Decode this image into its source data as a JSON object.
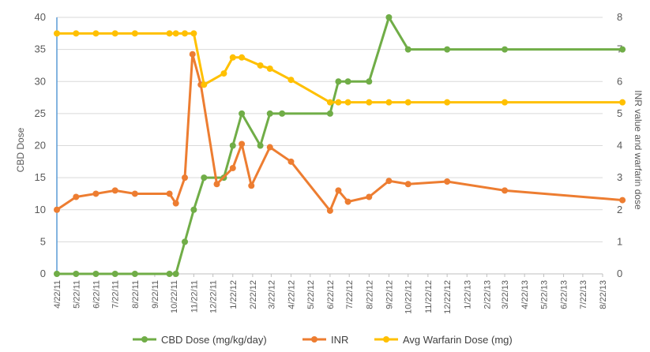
{
  "chart_data": {
    "type": "line",
    "xlabel": "",
    "ylabel": "CBD Dose",
    "y2label": "INR value and warfarin dose",
    "ylim": [
      0,
      40
    ],
    "y2lim": [
      0,
      8
    ],
    "yticks": [
      0,
      5,
      10,
      15,
      20,
      25,
      30,
      35,
      40
    ],
    "y2ticks": [
      0,
      1,
      2,
      3,
      4,
      5,
      6,
      7,
      8
    ],
    "x_ticks": [
      "4/22/11",
      "5/22/11",
      "6/22/11",
      "7/22/11",
      "8/22/11",
      "9/22/11",
      "10/22/11",
      "11/22/11",
      "12/22/11",
      "1/22/12",
      "2/22/12",
      "3/22/12",
      "4/22/12",
      "5/22/12",
      "6/22/12",
      "7/22/12",
      "8/22/12",
      "9/22/12",
      "10/22/12",
      "11/22/12",
      "12/22/12",
      "1/22/13",
      "2/22/13",
      "3/22/13",
      "4/22/13",
      "5/22/13",
      "6/22/13",
      "7/22/13",
      "8/22/13"
    ],
    "grid": "horizontal",
    "legend_position": "bottom",
    "series": [
      {
        "name": "CBD Dose (mg/kg/day)",
        "axis": "left",
        "color": "#70ad47",
        "points": [
          [
            "4/22/11",
            0
          ],
          [
            "5/22/11",
            0
          ],
          [
            "6/22/11",
            0
          ],
          [
            "7/22/11",
            0
          ],
          [
            "8/22/11",
            0
          ],
          [
            "10/15/11",
            0
          ],
          [
            "10/25/11",
            0
          ],
          [
            "11/8/11",
            5
          ],
          [
            "11/22/11",
            10
          ],
          [
            "12/8/11",
            15
          ],
          [
            "1/8/12",
            15
          ],
          [
            "1/22/12",
            20
          ],
          [
            "2/5/12",
            25
          ],
          [
            "3/5/12",
            20
          ],
          [
            "3/20/12",
            25
          ],
          [
            "4/8/12",
            25
          ],
          [
            "6/22/12",
            25
          ],
          [
            "7/5/12",
            30
          ],
          [
            "7/20/12",
            30
          ],
          [
            "8/22/12",
            30
          ],
          [
            "9/22/12",
            40
          ],
          [
            "10/22/12",
            35
          ],
          [
            "12/22/12",
            35
          ],
          [
            "3/22/13",
            35
          ],
          [
            "9/22/13",
            35
          ]
        ]
      },
      {
        "name": "INR",
        "axis": "right",
        "color": "#ed7d31",
        "points": [
          [
            "4/22/11",
            2
          ],
          [
            "5/22/11",
            2.4
          ],
          [
            "6/22/11",
            2.5
          ],
          [
            "7/22/11",
            2.6
          ],
          [
            "8/22/11",
            2.5
          ],
          [
            "10/15/11",
            2.5
          ],
          [
            "10/25/11",
            2.2
          ],
          [
            "11/8/11",
            3
          ],
          [
            "11/20/11",
            6.85
          ],
          [
            "12/3/11",
            5.9
          ],
          [
            "12/28/11",
            2.8
          ],
          [
            "1/22/12",
            3.3
          ],
          [
            "2/5/12",
            4.05
          ],
          [
            "2/20/12",
            2.75
          ],
          [
            "3/20/12",
            3.95
          ],
          [
            "4/22/12",
            3.5
          ],
          [
            "6/22/12",
            1.97
          ],
          [
            "7/5/12",
            2.6
          ],
          [
            "7/20/12",
            2.25
          ],
          [
            "8/22/12",
            2.4
          ],
          [
            "9/22/12",
            2.9
          ],
          [
            "10/22/12",
            2.8
          ],
          [
            "12/22/12",
            2.88
          ],
          [
            "3/22/13",
            2.6
          ],
          [
            "9/22/13",
            2.3
          ]
        ]
      },
      {
        "name": "Avg Warfarin Dose (mg)",
        "axis": "right",
        "color": "#ffc000",
        "points": [
          [
            "4/22/11",
            7.5
          ],
          [
            "5/22/11",
            7.5
          ],
          [
            "6/22/11",
            7.5
          ],
          [
            "7/22/11",
            7.5
          ],
          [
            "8/22/11",
            7.5
          ],
          [
            "10/15/11",
            7.5
          ],
          [
            "10/25/11",
            7.5
          ],
          [
            "11/8/11",
            7.5
          ],
          [
            "11/22/11",
            7.5
          ],
          [
            "12/8/11",
            5.9
          ],
          [
            "1/8/12",
            6.25
          ],
          [
            "1/22/12",
            6.75
          ],
          [
            "2/5/12",
            6.75
          ],
          [
            "3/5/12",
            6.5
          ],
          [
            "3/20/12",
            6.4
          ],
          [
            "4/22/12",
            6.05
          ],
          [
            "6/22/12",
            5.35
          ],
          [
            "7/5/12",
            5.35
          ],
          [
            "7/20/12",
            5.35
          ],
          [
            "8/22/12",
            5.35
          ],
          [
            "9/22/12",
            5.35
          ],
          [
            "10/22/12",
            5.35
          ],
          [
            "12/22/12",
            5.35
          ],
          [
            "3/22/13",
            5.35
          ],
          [
            "9/22/13",
            5.35
          ]
        ]
      }
    ]
  }
}
